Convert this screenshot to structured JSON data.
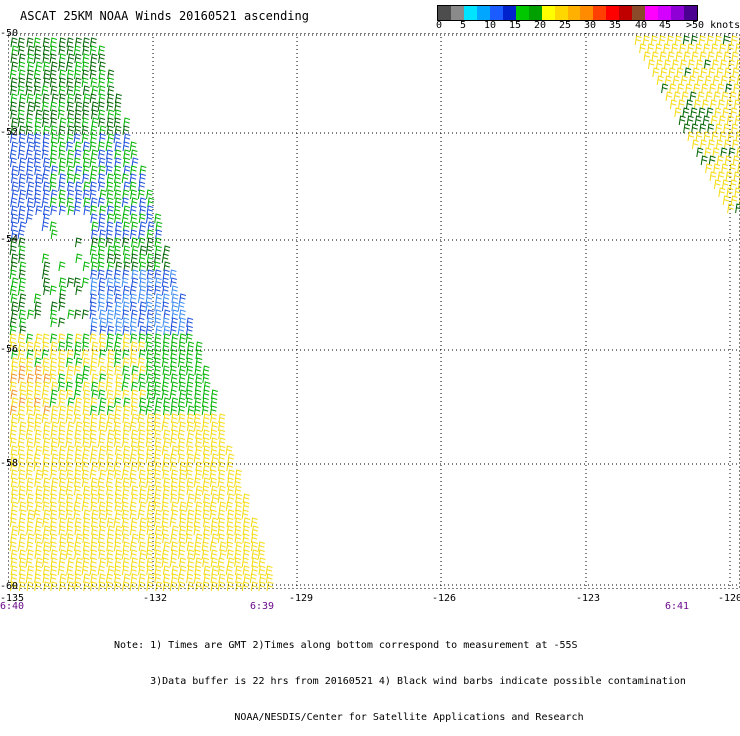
{
  "title": "ASCAT 25KM NOAA Winds 20160521 ascending",
  "colorbar": {
    "colors": [
      "#4d4d4d",
      "#8a8a8a",
      "#00e4ff",
      "#00a6ff",
      "#1a5cff",
      "#0022cc",
      "#00c800",
      "#00a000",
      "#ffff00",
      "#ffd700",
      "#ffb000",
      "#ff8c00",
      "#ff4000",
      "#ff0000",
      "#c00000",
      "#8b4a2a",
      "#ff00ff",
      "#d400ff",
      "#8f00d6",
      "#4a0090"
    ],
    "labels": [
      "0",
      "5",
      "10",
      "15",
      "20",
      "25",
      "30",
      "35",
      "40",
      "45",
      ">50 knots"
    ]
  },
  "latitudes": [
    "-50",
    "-52",
    "-54",
    "-56",
    "-58",
    "-60"
  ],
  "longitudes": [
    "-135",
    "-132",
    "-129",
    "-126",
    "-123",
    "-120"
  ],
  "times": [
    "6:40",
    "6:39",
    "6:41"
  ],
  "notes": [
    "Note: 1) Times are GMT 2)Times along bottom correspond to measurement at -55S",
    "      3)Data buffer is 22 hrs from 20160521 4) Black wind barbs indicate possible contamination",
    "                    NOAA/NESDIS/Center for Satellite Applications and Research"
  ],
  "wind_barb_colors": {
    "dark_green": "#006400",
    "green": "#00b400",
    "blue": "#1e50dc",
    "light_blue": "#3c8cf0",
    "yellow": "#f5dc14",
    "orange": "#f09628",
    "black": "#000000"
  }
}
